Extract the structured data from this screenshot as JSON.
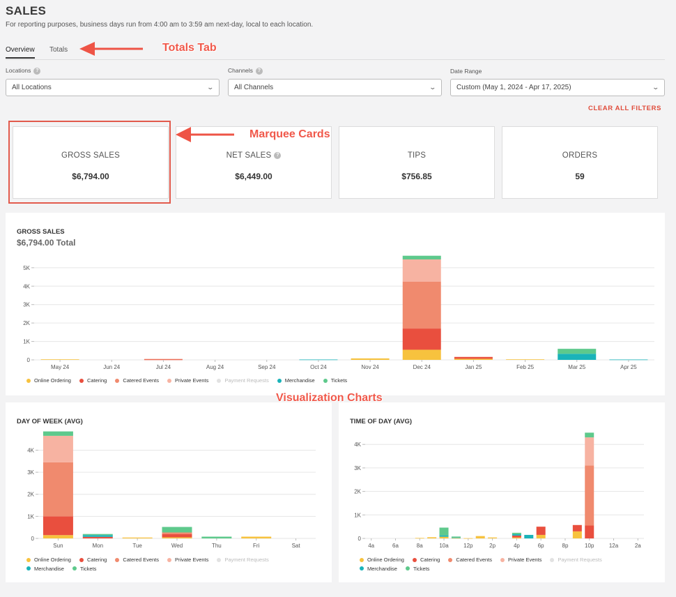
{
  "header": {
    "title": "SALES",
    "subtitle": "For reporting purposes, business days run from 4:00 am to 3:59 am next-day, local to each location."
  },
  "tabs": [
    {
      "label": "Overview",
      "active": true
    },
    {
      "label": "Totals",
      "active": false
    }
  ],
  "filters": {
    "locations": {
      "label": "Locations",
      "value": "All Locations"
    },
    "channels": {
      "label": "Channels",
      "value": "All Channels"
    },
    "date_range": {
      "label": "Date Range",
      "value": "Custom (May 1, 2024 - Apr 17, 2025)"
    },
    "clear_label": "CLEAR ALL FILTERS"
  },
  "cards": [
    {
      "title": "GROSS SALES",
      "value": "$6,794.00"
    },
    {
      "title": "NET SALES",
      "value": "$6,449.00"
    },
    {
      "title": "TIPS",
      "value": "$756.85"
    },
    {
      "title": "ORDERS",
      "value": "59"
    }
  ],
  "annotations": {
    "totals_tab": "Totals Tab",
    "marquee_cards": "Marquee Cards",
    "visualization_charts": "Visualization Charts"
  },
  "colors": {
    "online_ordering": "#f7c23e",
    "catering": "#e94f3e",
    "catered_events": "#f08a6e",
    "private_events": "#f7b3a2",
    "payment_requests": "#e2e2e2",
    "merchandise": "#1ab3b9",
    "tickets": "#5ec98c",
    "annotation": "#f0584a"
  },
  "legend": [
    {
      "name": "Online Ordering",
      "key": "online_ordering",
      "muted": false
    },
    {
      "name": "Catering",
      "key": "catering",
      "muted": false
    },
    {
      "name": "Catered Events",
      "key": "catered_events",
      "muted": false
    },
    {
      "name": "Private Events",
      "key": "private_events",
      "muted": false
    },
    {
      "name": "Payment Requests",
      "key": "payment_requests",
      "muted": true
    },
    {
      "name": "Merchandise",
      "key": "merchandise",
      "muted": false
    },
    {
      "name": "Tickets",
      "key": "tickets",
      "muted": false
    }
  ],
  "gross_panel": {
    "title": "GROSS SALES",
    "total": "$6,794.00 Total"
  },
  "dow_panel": {
    "title": "DAY OF WEEK (AVG)"
  },
  "tod_panel": {
    "title": "TIME OF DAY (AVG)"
  },
  "chart_data": [
    {
      "id": "gross",
      "type": "bar",
      "stacked": true,
      "categories": [
        "May 24",
        "Jun 24",
        "Jul 24",
        "Aug 24",
        "Sep 24",
        "Oct 24",
        "Nov 24",
        "Dec 24",
        "Jan 25",
        "Feb 25",
        "Mar 25",
        "Apr 25"
      ],
      "ylim": [
        0,
        5600
      ],
      "yticks": [
        0,
        1000,
        2000,
        3000,
        4000,
        5000
      ],
      "ytick_labels": [
        "0",
        "1K",
        "2K",
        "3K",
        "4K",
        "5K"
      ],
      "series": [
        {
          "name": "Online Ordering",
          "key": "online_ordering",
          "values": [
            30,
            0,
            0,
            0,
            0,
            0,
            80,
            550,
            60,
            30,
            0,
            0
          ]
        },
        {
          "name": "Catering",
          "key": "catering",
          "values": [
            0,
            0,
            20,
            0,
            0,
            0,
            0,
            1150,
            100,
            0,
            0,
            0
          ]
        },
        {
          "name": "Catered Events",
          "key": "catered_events",
          "values": [
            0,
            0,
            30,
            0,
            0,
            0,
            0,
            2550,
            0,
            0,
            0,
            0
          ]
        },
        {
          "name": "Private Events",
          "key": "private_events",
          "values": [
            0,
            0,
            0,
            0,
            0,
            0,
            0,
            1200,
            0,
            0,
            0,
            0
          ]
        },
        {
          "name": "Payment Requests",
          "key": "payment_requests",
          "values": [
            0,
            0,
            0,
            0,
            0,
            0,
            0,
            0,
            0,
            0,
            0,
            0
          ]
        },
        {
          "name": "Merchandise",
          "key": "merchandise",
          "values": [
            0,
            0,
            0,
            0,
            0,
            20,
            0,
            0,
            0,
            0,
            330,
            20
          ]
        },
        {
          "name": "Tickets",
          "key": "tickets",
          "values": [
            0,
            0,
            0,
            0,
            0,
            0,
            0,
            200,
            0,
            0,
            270,
            0
          ]
        }
      ]
    },
    {
      "id": "dow",
      "type": "bar",
      "stacked": true,
      "categories": [
        "Sun",
        "Mon",
        "Tue",
        "Wed",
        "Thu",
        "Fri",
        "Sat"
      ],
      "ylim": [
        0,
        4900
      ],
      "yticks": [
        0,
        1000,
        2000,
        3000,
        4000
      ],
      "ytick_labels": [
        "0",
        "1K",
        "2K",
        "3K",
        "4K"
      ],
      "series": [
        {
          "name": "Online Ordering",
          "key": "online_ordering",
          "values": [
            150,
            0,
            40,
            50,
            0,
            80,
            0
          ]
        },
        {
          "name": "Catering",
          "key": "catering",
          "values": [
            850,
            70,
            0,
            150,
            0,
            0,
            0
          ]
        },
        {
          "name": "Catered Events",
          "key": "catered_events",
          "values": [
            2450,
            0,
            0,
            70,
            0,
            0,
            0
          ]
        },
        {
          "name": "Private Events",
          "key": "private_events",
          "values": [
            1200,
            0,
            0,
            0,
            0,
            0,
            0
          ]
        },
        {
          "name": "Payment Requests",
          "key": "payment_requests",
          "values": [
            0,
            0,
            0,
            0,
            0,
            0,
            0
          ]
        },
        {
          "name": "Merchandise",
          "key": "merchandise",
          "values": [
            0,
            80,
            0,
            0,
            0,
            0,
            0
          ]
        },
        {
          "name": "Tickets",
          "key": "tickets",
          "values": [
            200,
            50,
            0,
            250,
            80,
            0,
            0
          ]
        }
      ]
    },
    {
      "id": "tod",
      "type": "bar",
      "stacked": true,
      "categories": [
        "4a",
        "5a",
        "6a",
        "7a",
        "8a",
        "9a",
        "10a",
        "11a",
        "12p",
        "1p",
        "2p",
        "3p",
        "4p",
        "5p",
        "6p",
        "7p",
        "8p",
        "9p",
        "10p",
        "11p",
        "12a",
        "1a",
        "2a"
      ],
      "tick_labels": [
        "4a",
        "",
        "6a",
        "",
        "8a",
        "",
        "10a",
        "",
        "12p",
        "",
        "2p",
        "",
        "4p",
        "",
        "6p",
        "",
        "8p",
        "",
        "10p",
        "",
        "12a",
        "",
        "2a"
      ],
      "ylim": [
        0,
        4600
      ],
      "yticks": [
        0,
        1000,
        2000,
        3000,
        4000
      ],
      "ytick_labels": [
        "0",
        "1K",
        "2K",
        "3K",
        "4K"
      ],
      "series": [
        {
          "name": "Online Ordering",
          "key": "online_ordering",
          "values": [
            0,
            0,
            0,
            0,
            20,
            50,
            70,
            20,
            10,
            100,
            40,
            0,
            40,
            0,
            150,
            0,
            0,
            300,
            0,
            0,
            0,
            0,
            0
          ]
        },
        {
          "name": "Catering",
          "key": "catering",
          "values": [
            0,
            0,
            0,
            0,
            0,
            0,
            0,
            0,
            0,
            0,
            0,
            0,
            80,
            0,
            350,
            0,
            0,
            270,
            550,
            0,
            0,
            0,
            0
          ]
        },
        {
          "name": "Catered Events",
          "key": "catered_events",
          "values": [
            0,
            0,
            0,
            0,
            0,
            0,
            0,
            0,
            0,
            0,
            0,
            0,
            0,
            0,
            0,
            0,
            0,
            0,
            2550,
            0,
            0,
            0,
            0
          ]
        },
        {
          "name": "Private Events",
          "key": "private_events",
          "values": [
            0,
            0,
            0,
            0,
            0,
            0,
            0,
            0,
            0,
            0,
            0,
            0,
            0,
            0,
            0,
            0,
            0,
            0,
            1200,
            0,
            0,
            0,
            0
          ]
        },
        {
          "name": "Payment Requests",
          "key": "payment_requests",
          "values": [
            0,
            0,
            0,
            0,
            0,
            0,
            0,
            0,
            0,
            0,
            0,
            0,
            0,
            0,
            0,
            0,
            0,
            0,
            0,
            0,
            0,
            0,
            0
          ]
        },
        {
          "name": "Merchandise",
          "key": "merchandise",
          "values": [
            0,
            0,
            0,
            0,
            0,
            0,
            60,
            20,
            0,
            0,
            0,
            0,
            60,
            150,
            0,
            0,
            0,
            0,
            0,
            0,
            0,
            0,
            0
          ]
        },
        {
          "name": "Tickets",
          "key": "tickets",
          "values": [
            0,
            0,
            0,
            0,
            0,
            0,
            330,
            40,
            0,
            0,
            0,
            0,
            60,
            0,
            0,
            0,
            0,
            0,
            200,
            0,
            0,
            0,
            0
          ]
        }
      ]
    }
  ]
}
